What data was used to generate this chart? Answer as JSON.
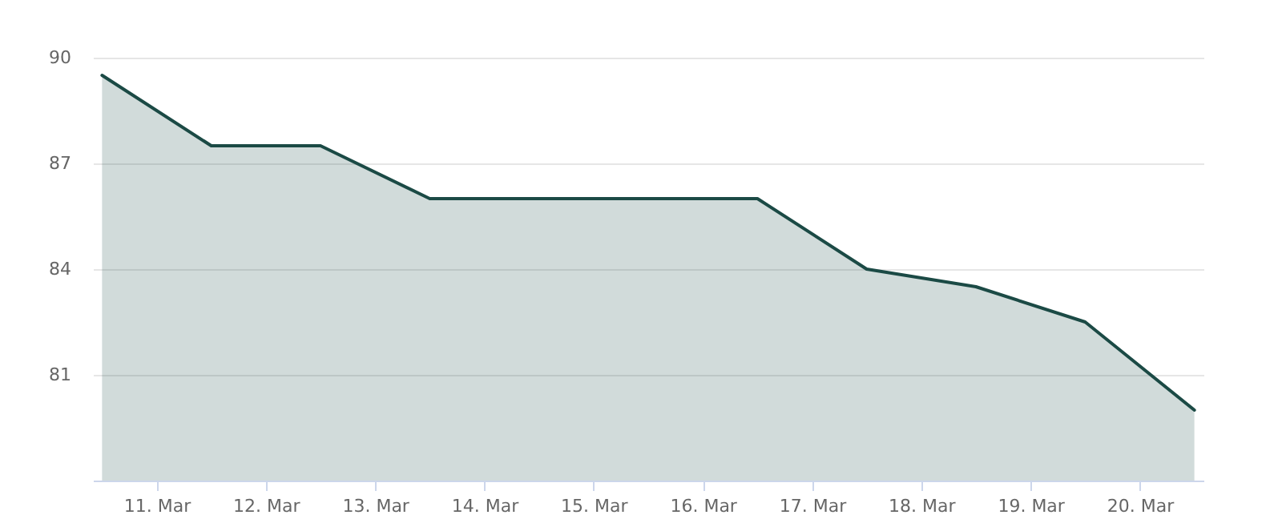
{
  "chart_data": {
    "type": "area",
    "x": [
      "--03-11",
      "--03-12",
      "--03-13",
      "--03-14",
      "--03-15",
      "--03-16",
      "--03-17",
      "--03-18",
      "--03-19",
      "--03-20",
      "--03-21"
    ],
    "series": [
      {
        "color": "#1b4a45",
        "values": [
          89.5,
          87.5,
          87.5,
          86,
          86,
          86,
          86,
          84,
          83.5,
          82.5,
          80
        ]
      }
    ],
    "xlim": [
      "--03-10T22:00",
      "--03-21T02:00"
    ],
    "xticks": [
      {
        "value": "--03-11T12:00",
        "label": "11. Mar"
      },
      {
        "value": "--03-12T12:00",
        "label": "12. Mar"
      },
      {
        "value": "--03-13T12:00",
        "label": "13. Mar"
      },
      {
        "value": "--03-14T12:00",
        "label": "14. Mar"
      },
      {
        "value": "--03-15T12:00",
        "label": "15. Mar"
      },
      {
        "value": "--03-16T12:00",
        "label": "16. Mar"
      },
      {
        "value": "--03-17T12:00",
        "label": "17. Mar"
      },
      {
        "value": "--03-18T12:00",
        "label": "18. Mar"
      },
      {
        "value": "--03-19T12:00",
        "label": "19. Mar"
      },
      {
        "value": "--03-20T12:00",
        "label": "20. Mar"
      }
    ],
    "ylim": [
      78,
      90
    ],
    "yticks": [
      81,
      84,
      87,
      90
    ],
    "grid": "y"
  }
}
